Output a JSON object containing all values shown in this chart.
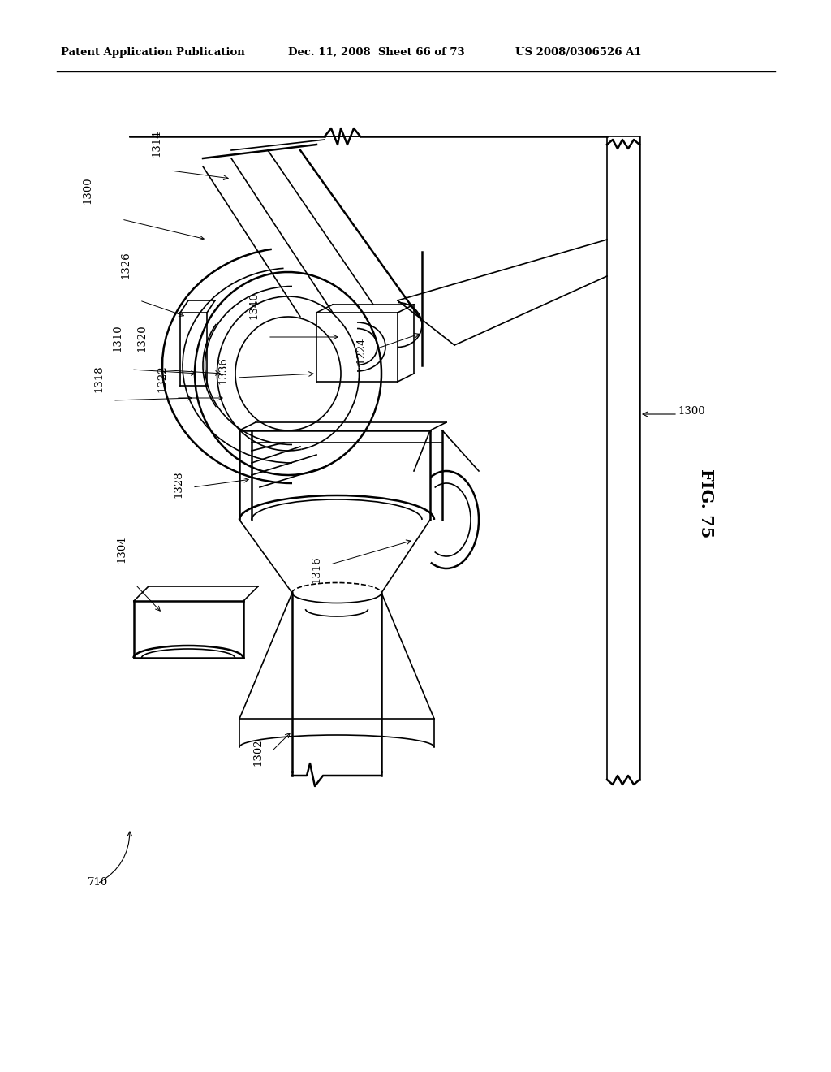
{
  "background_color": "#ffffff",
  "header_left": "Patent Application Publication",
  "header_center": "Dec. 11, 2008  Sheet 66 of 73",
  "header_right": "US 2008/0306526 A1",
  "fig_label": "FIG. 75"
}
